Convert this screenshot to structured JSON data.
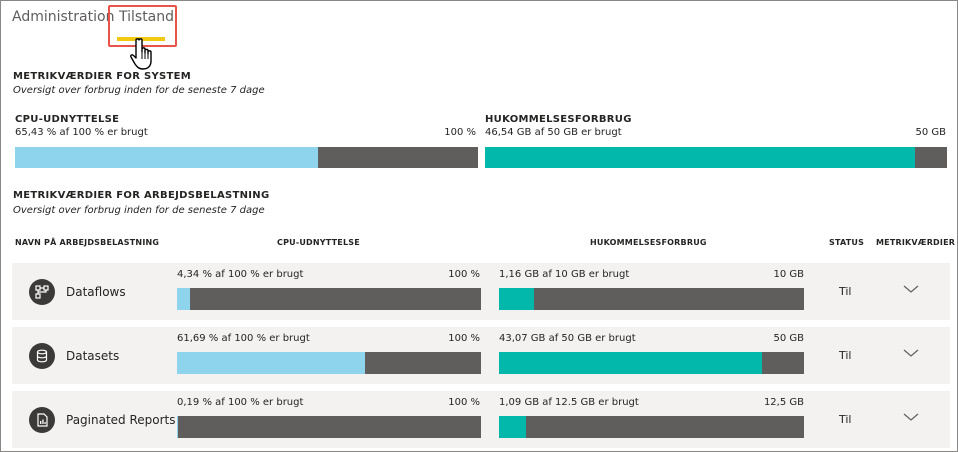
{
  "tabs": {
    "admin": "Administration",
    "tilstand": "Tilstand"
  },
  "system": {
    "title": "METRIKVÆRDIER FOR SYSTEM",
    "subtitle": "Oversigt over forbrug inden for de seneste 7 dage",
    "cpu": {
      "label": "CPU-UDNYTTELSE",
      "text": "65,43 % af 100 % er brugt",
      "max": "100 %",
      "fraction": 0.6543
    },
    "memory": {
      "label": "HUKOMMELSESFORBRUG",
      "text": "46,54 GB af 50 GB er brugt",
      "max": "50 GB",
      "fraction": 0.9308
    }
  },
  "workload": {
    "title": "METRIKVÆRDIER FOR ARBEJDSBELASTNING",
    "subtitle": "Oversigt over forbrug inden for de seneste 7 dage",
    "headers": {
      "name": "NAVN PÅ ARBEJDSBELASTNING",
      "cpu": "CPU-UDNYTTELSE",
      "memory": "HUKOMMELSESFORBRUG",
      "status": "STATUS",
      "metrics": "METRIKVÆRDIER"
    },
    "rows": [
      {
        "name": "Dataflows",
        "icon": "dataflow-icon",
        "cpu_text": "4,34 % af 100 % er brugt",
        "cpu_max": "100 %",
        "cpu_fraction": 0.0434,
        "mem_text": "1,16 GB af 10 GB er brugt",
        "mem_max": "10 GB",
        "mem_fraction": 0.116,
        "status": "Til"
      },
      {
        "name": "Datasets",
        "icon": "database-icon",
        "cpu_text": "61,69 % af 100 % er brugt",
        "cpu_max": "100 %",
        "cpu_fraction": 0.6169,
        "mem_text": "43,07 GB af 50 GB er brugt",
        "mem_max": "50 GB",
        "mem_fraction": 0.8614,
        "status": "Til"
      },
      {
        "name": "Paginated Reports",
        "icon": "report-icon",
        "cpu_text": "0,19 % af 100 % er brugt",
        "cpu_max": "100 %",
        "cpu_fraction": 0.0019,
        "mem_text": "1,09 GB af 12.5 GB er brugt",
        "mem_max": "12,5 GB",
        "mem_fraction": 0.0872,
        "status": "Til"
      }
    ]
  },
  "colors": {
    "cpu_fill": "#8dd4ec",
    "memory_fill": "#01b8aa",
    "bar_track": "#605e5c",
    "tab_accent": "#f2c811",
    "highlight_box": "#e8534a"
  }
}
